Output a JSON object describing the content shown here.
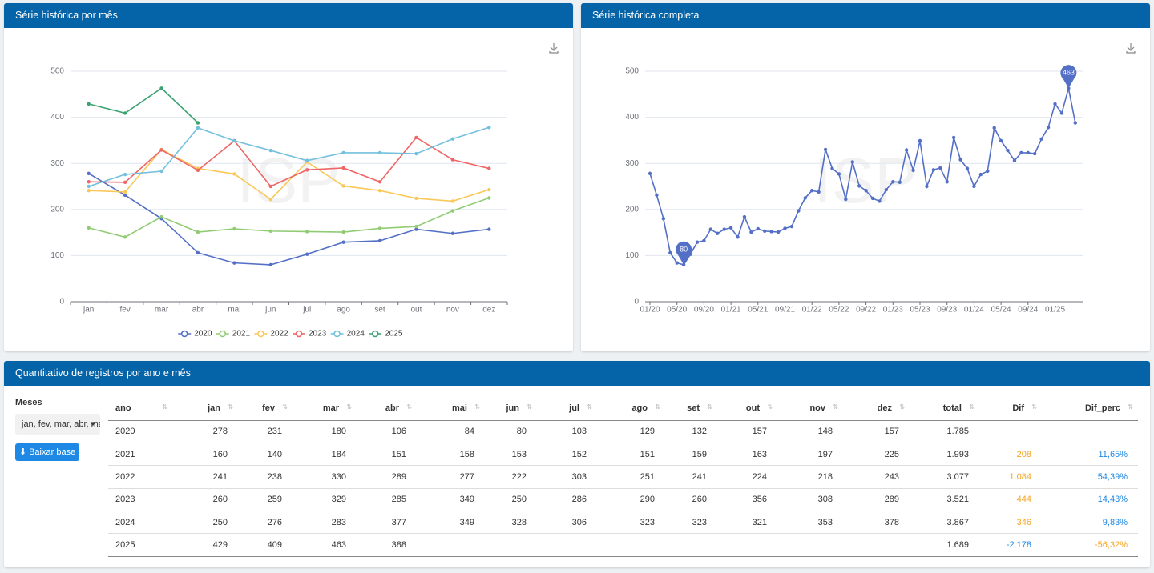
{
  "chart_data": [
    {
      "type": "line",
      "title": "Série histórica por mês",
      "watermark": "ISP",
      "categories": [
        "jan",
        "fev",
        "mar",
        "abr",
        "mai",
        "jun",
        "jul",
        "ago",
        "set",
        "out",
        "nov",
        "dez"
      ],
      "series": [
        {
          "name": "2020",
          "color": "#5470c6",
          "values": [
            278,
            231,
            180,
            106,
            84,
            80,
            103,
            129,
            132,
            157,
            148,
            157
          ]
        },
        {
          "name": "2021",
          "color": "#91cc75",
          "values": [
            160,
            140,
            184,
            151,
            158,
            153,
            152,
            151,
            159,
            163,
            197,
            225
          ]
        },
        {
          "name": "2022",
          "color": "#fac858",
          "values": [
            241,
            238,
            330,
            289,
            277,
            222,
            303,
            251,
            241,
            224,
            218,
            243
          ]
        },
        {
          "name": "2023",
          "color": "#ee6666",
          "values": [
            260,
            259,
            329,
            285,
            349,
            250,
            286,
            290,
            260,
            356,
            308,
            289
          ]
        },
        {
          "name": "2024",
          "color": "#73c0de",
          "values": [
            250,
            276,
            283,
            377,
            349,
            328,
            306,
            323,
            323,
            321,
            353,
            378
          ]
        },
        {
          "name": "2025",
          "color": "#3ba272",
          "values": [
            429,
            409,
            463,
            388,
            null,
            null,
            null,
            null,
            null,
            null,
            null,
            null
          ]
        }
      ],
      "ylim": [
        0,
        500
      ],
      "yticks": [
        0,
        100,
        200,
        300,
        400,
        500
      ],
      "grid": true,
      "legend": "bottom"
    },
    {
      "type": "line",
      "title": "Série histórica completa",
      "watermark": "ISP",
      "color": "#5470c6",
      "mark_min_max": true,
      "categories": [
        "01/20",
        null,
        null,
        null,
        "05/20",
        null,
        null,
        null,
        "09/20",
        null,
        null,
        null,
        "01/21",
        null,
        null,
        null,
        "05/21",
        null,
        null,
        null,
        "09/21",
        null,
        null,
        null,
        "01/22",
        null,
        null,
        null,
        "05/22",
        null,
        null,
        null,
        "09/22",
        null,
        null,
        null,
        "01/23",
        null,
        null,
        null,
        "05/23",
        null,
        null,
        null,
        "09/23",
        null,
        null,
        null,
        "01/24",
        null,
        null,
        null,
        "05/24",
        null,
        null,
        null,
        "09/24",
        null,
        null,
        null,
        "01/25",
        null,
        null,
        null
      ],
      "values": [
        278,
        231,
        180,
        106,
        84,
        80,
        103,
        129,
        132,
        157,
        148,
        157,
        160,
        140,
        184,
        151,
        158,
        153,
        152,
        151,
        159,
        163,
        197,
        225,
        241,
        238,
        330,
        289,
        277,
        222,
        303,
        251,
        241,
        224,
        218,
        243,
        260,
        259,
        329,
        285,
        349,
        250,
        286,
        290,
        260,
        356,
        308,
        289,
        250,
        276,
        283,
        377,
        349,
        328,
        306,
        323,
        323,
        321,
        353,
        378,
        429,
        409,
        463,
        388
      ],
      "ylim": [
        0,
        500
      ],
      "yticks": [
        0,
        100,
        200,
        300,
        400,
        500
      ],
      "grid": true
    }
  ],
  "table": {
    "title": "Quantitativo de registros por ano e mês",
    "columns": [
      "ano",
      "jan",
      "fev",
      "mar",
      "abr",
      "mai",
      "jun",
      "jul",
      "ago",
      "set",
      "out",
      "nov",
      "dez",
      "total",
      "Dif",
      "Dif_perc"
    ],
    "rows": [
      [
        "2020",
        "278",
        "231",
        "180",
        "106",
        "84",
        "80",
        "103",
        "129",
        "132",
        "157",
        "148",
        "157",
        "1.785",
        null,
        null
      ],
      [
        "2021",
        "160",
        "140",
        "184",
        "151",
        "158",
        "153",
        "152",
        "151",
        "159",
        "163",
        "197",
        "225",
        "1.993",
        "208",
        "11,65%"
      ],
      [
        "2022",
        "241",
        "238",
        "330",
        "289",
        "277",
        "222",
        "303",
        "251",
        "241",
        "224",
        "218",
        "243",
        "3.077",
        "1.084",
        "54,39%"
      ],
      [
        "2023",
        "260",
        "259",
        "329",
        "285",
        "349",
        "250",
        "286",
        "290",
        "260",
        "356",
        "308",
        "289",
        "3.521",
        "444",
        "14,43%"
      ],
      [
        "2024",
        "250",
        "276",
        "283",
        "377",
        "349",
        "328",
        "306",
        "323",
        "323",
        "321",
        "353",
        "378",
        "3.867",
        "346",
        "9,83%"
      ],
      [
        "2025",
        "429",
        "409",
        "463",
        "388",
        null,
        null,
        null,
        null,
        null,
        null,
        null,
        null,
        "1.689",
        "-2.178",
        "-56,32%"
      ]
    ]
  },
  "sidebar": {
    "label": "Meses",
    "select": "jan, fev, mar, abr, mai, jun, jul, ago, set, out, nov, dez",
    "button": "Baixar base"
  }
}
